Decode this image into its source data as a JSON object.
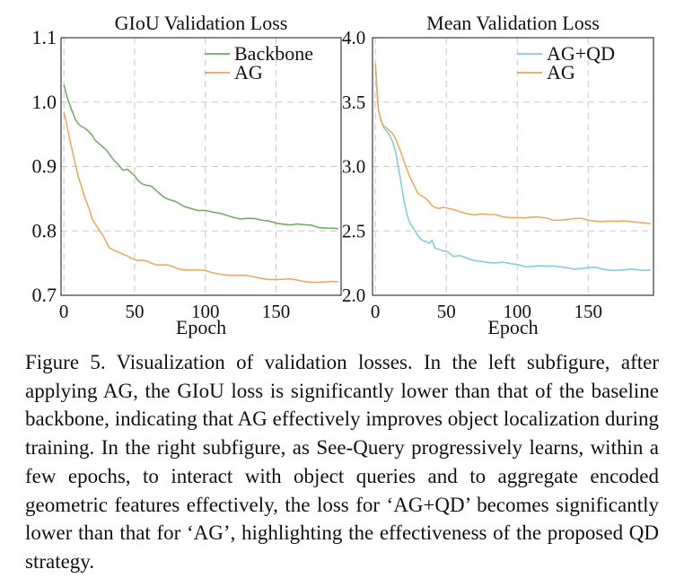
{
  "chart_data": [
    {
      "type": "line",
      "title": "GIoU Validation Loss",
      "xlabel": "Epoch",
      "ylabel": "",
      "xlim": [
        -2,
        196
      ],
      "ylim": [
        0.7,
        1.1
      ],
      "xticks": [
        0,
        50,
        100,
        150
      ],
      "xtick_labels": [
        "0",
        "50",
        "100",
        "150"
      ],
      "yticks": [
        0.7,
        0.8,
        0.9,
        1.0,
        1.1
      ],
      "ytick_labels": [
        "0.7",
        "0.8",
        "0.9",
        "1.0",
        "1.1"
      ],
      "grid": true,
      "legend_position": "top-right",
      "x": [
        0,
        2,
        4,
        6,
        8,
        10,
        12,
        15,
        18,
        20,
        22,
        25,
        28,
        30,
        32,
        35,
        38,
        40,
        42,
        45,
        48,
        50,
        52,
        55,
        58,
        60,
        62,
        65,
        68,
        70,
        72,
        75,
        78,
        80,
        85,
        90,
        95,
        100,
        105,
        110,
        115,
        120,
        125,
        130,
        135,
        140,
        145,
        150,
        155,
        160,
        165,
        170,
        175,
        180,
        185,
        190,
        194
      ],
      "series": [
        {
          "name": "Backbone",
          "color": "#6aab5c",
          "values": [
            1.027,
            1.01,
            0.995,
            0.985,
            0.975,
            0.968,
            0.963,
            0.958,
            0.952,
            0.948,
            0.942,
            0.937,
            0.93,
            0.925,
            0.918,
            0.91,
            0.905,
            0.9,
            0.895,
            0.895,
            0.888,
            0.885,
            0.88,
            0.875,
            0.872,
            0.87,
            0.868,
            0.862,
            0.858,
            0.855,
            0.852,
            0.848,
            0.845,
            0.843,
            0.838,
            0.836,
            0.833,
            0.832,
            0.828,
            0.826,
            0.824,
            0.822,
            0.82,
            0.82,
            0.818,
            0.815,
            0.815,
            0.813,
            0.812,
            0.81,
            0.81,
            0.808,
            0.808,
            0.806,
            0.806,
            0.805,
            0.803
          ]
        },
        {
          "name": "AG",
          "color": "#eca55a",
          "values": [
            0.985,
            0.965,
            0.945,
            0.925,
            0.905,
            0.885,
            0.87,
            0.85,
            0.835,
            0.82,
            0.812,
            0.8,
            0.79,
            0.782,
            0.775,
            0.772,
            0.768,
            0.765,
            0.762,
            0.76,
            0.758,
            0.757,
            0.755,
            0.754,
            0.752,
            0.751,
            0.75,
            0.749,
            0.748,
            0.747,
            0.746,
            0.745,
            0.744,
            0.743,
            0.741,
            0.739,
            0.738,
            0.737,
            0.735,
            0.734,
            0.733,
            0.731,
            0.73,
            0.729,
            0.728,
            0.727,
            0.726,
            0.725,
            0.724,
            0.724,
            0.723,
            0.722,
            0.722,
            0.721,
            0.72,
            0.72,
            0.72
          ]
        }
      ]
    },
    {
      "type": "line",
      "title": "Mean Validation Loss",
      "xlabel": "Epoch",
      "ylabel": "",
      "xlim": [
        -2,
        196
      ],
      "ylim": [
        2.0,
        4.0
      ],
      "xticks": [
        0,
        50,
        100,
        150
      ],
      "xtick_labels": [
        "0",
        "50",
        "100",
        "150"
      ],
      "yticks": [
        2.0,
        2.5,
        3.0,
        3.5,
        4.0
      ],
      "ytick_labels": [
        "2.0",
        "2.5",
        "3.0",
        "3.5",
        "4.0"
      ],
      "grid": true,
      "legend_position": "top-right",
      "x": [
        0,
        2,
        4,
        6,
        8,
        10,
        12,
        14,
        16,
        18,
        20,
        22,
        24,
        26,
        28,
        30,
        32,
        34,
        36,
        38,
        40,
        42,
        45,
        48,
        50,
        55,
        60,
        65,
        70,
        75,
        80,
        85,
        90,
        95,
        100,
        105,
        110,
        115,
        120,
        125,
        130,
        135,
        140,
        145,
        150,
        155,
        160,
        165,
        170,
        175,
        180,
        185,
        190,
        194
      ],
      "series": [
        {
          "name": "AG+QD",
          "color": "#7fcbd6",
          "values": [
            3.8,
            3.45,
            3.35,
            3.3,
            3.28,
            3.25,
            3.2,
            3.12,
            3.0,
            2.88,
            2.75,
            2.65,
            2.57,
            2.53,
            2.49,
            2.46,
            2.44,
            2.43,
            2.42,
            2.4,
            2.42,
            2.36,
            2.36,
            2.35,
            2.35,
            2.3,
            2.3,
            2.28,
            2.27,
            2.27,
            2.26,
            2.25,
            2.25,
            2.24,
            2.24,
            2.23,
            2.23,
            2.23,
            2.22,
            2.22,
            2.22,
            2.22,
            2.21,
            2.21,
            2.21,
            2.21,
            2.2,
            2.2,
            2.2,
            2.2,
            2.2,
            2.19,
            2.19,
            2.2
          ]
        },
        {
          "name": "AG",
          "color": "#eca55a",
          "values": [
            3.8,
            3.45,
            3.36,
            3.32,
            3.3,
            3.27,
            3.25,
            3.22,
            3.17,
            3.12,
            3.05,
            2.98,
            2.92,
            2.88,
            2.84,
            2.8,
            2.78,
            2.76,
            2.74,
            2.72,
            2.7,
            2.69,
            2.68,
            2.68,
            2.67,
            2.66,
            2.65,
            2.64,
            2.63,
            2.63,
            2.62,
            2.62,
            2.61,
            2.61,
            2.61,
            2.6,
            2.6,
            2.6,
            2.6,
            2.59,
            2.59,
            2.59,
            2.59,
            2.59,
            2.58,
            2.58,
            2.58,
            2.58,
            2.57,
            2.57,
            2.57,
            2.57,
            2.57,
            2.56
          ]
        }
      ]
    }
  ],
  "caption": "Figure 5. Visualization of validation losses. In the left subfigure, after applying AG, the GIoU loss is significantly lower than that of the baseline backbone, indicating that AG effectively improves object localization during training. In the right subfigure, as See-Query progressively learns, within a few epochs, to interact with object queries and to aggregate encoded geometric features effectively, the loss for ‘AG+QD’ becomes significantly lower than that for ‘AG’, highlighting the effectiveness of the proposed QD strategy."
}
